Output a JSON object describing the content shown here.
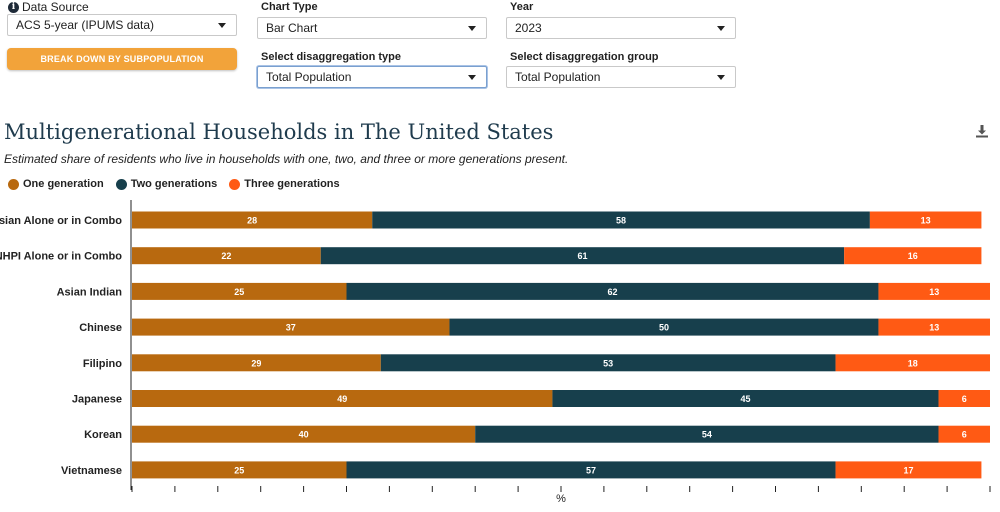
{
  "colors": {
    "one_generation": "#b8690f",
    "two_generations": "#173f4c",
    "three_generations": "#ff5a14",
    "button": "#f2a33a",
    "title": "#1f3b4d"
  },
  "controls": {
    "data_source": {
      "label": "Data Source",
      "value": "ACS 5-year (IPUMS data)",
      "icon": "info-icon"
    },
    "chart_type": {
      "label": "Chart Type",
      "value": "Bar Chart"
    },
    "year": {
      "label": "Year",
      "value": "2023"
    },
    "disaggregation_type": {
      "label": "Select disaggregation type",
      "value": "Total Population"
    },
    "disaggregation_group": {
      "label": "Select disaggregation group",
      "value": "Total Population"
    },
    "breakdown_button": "BREAK DOWN BY SUBPOPULATION",
    "download_icon": "download-icon"
  },
  "chart_data": {
    "type": "bar",
    "orientation": "horizontal",
    "stacked": true,
    "title": "Multigenerational Households in The United States",
    "subtitle": "Estimated share of residents who live in households with one, two, and three or more generations present.",
    "xlabel": "%",
    "ylabel": "",
    "xlim": [
      0,
      100
    ],
    "legend_position": "top-left",
    "categories": [
      "Asian Alone or in Combo",
      "NHPI Alone or in Combo",
      "Asian Indian",
      "Chinese",
      "Filipino",
      "Japanese",
      "Korean",
      "Vietnamese"
    ],
    "series": [
      {
        "name": "One generation",
        "values": [
          28,
          22,
          25,
          37,
          29,
          49,
          40,
          25
        ]
      },
      {
        "name": "Two generations",
        "values": [
          58,
          61,
          62,
          50,
          53,
          45,
          54,
          57
        ]
      },
      {
        "name": "Three generations",
        "values": [
          13,
          16,
          13,
          13,
          18,
          6,
          6,
          17
        ]
      }
    ]
  }
}
